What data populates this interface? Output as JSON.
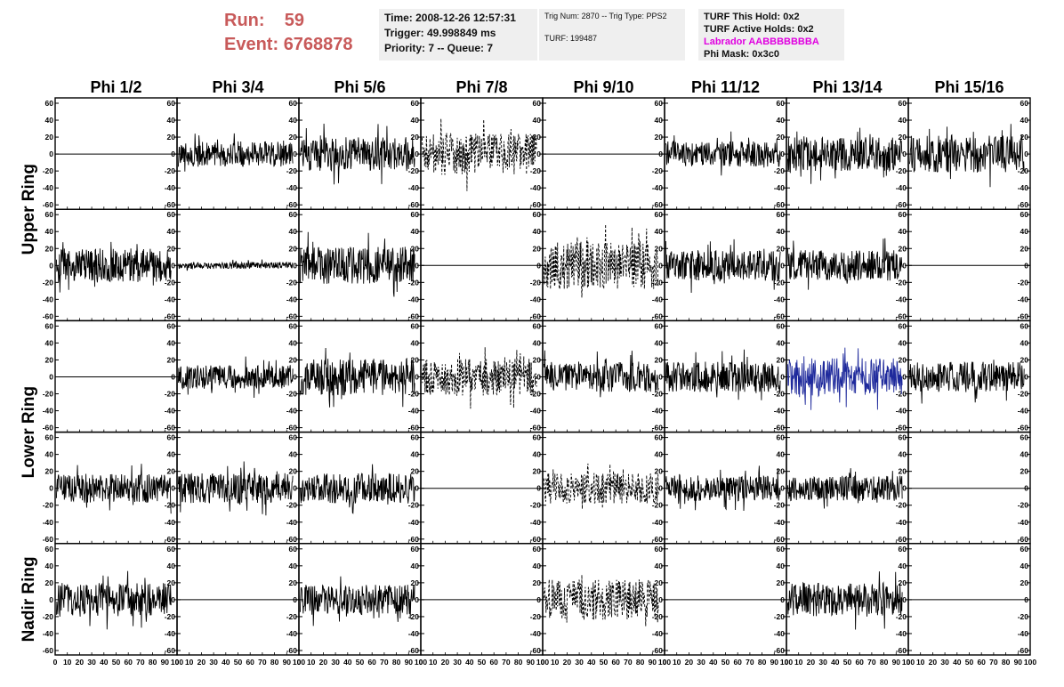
{
  "header": {
    "run_label": "Run:",
    "run_value": "59",
    "event_label": "Event:",
    "event_value": "6768878",
    "time_line": "Time: 2008-12-26 12:57:31",
    "trigger_line": "Trigger: 49.998849 ms",
    "priority_line": "Priority: 7 -- Queue: 7",
    "trig_line": "Trig Num: 2870 -- Trig Type: PPS2",
    "turf_line": "TURF: 199487",
    "turf_hold_line": "TURF This Hold: 0x2",
    "turf_active_line": "TURF Active Holds: 0x2",
    "labrador_line": "Labrador AABBBBBBBA",
    "phi_mask_line": "Phi Mask: 0x3c0"
  },
  "colors": {
    "run_text": "#c85a5a",
    "labrador_text": "#e000e0",
    "trace_black": "#000000",
    "trace_blue": "#1f2a9c",
    "info_bg": "#efefef"
  },
  "chart_data": {
    "type": "line",
    "description_grid": "5 rows x 8 columns of small waveform panels",
    "columns": [
      "Phi 1/2",
      "Phi 3/4",
      "Phi 5/6",
      "Phi 7/8",
      "Phi 9/10",
      "Phi 11/12",
      "Phi 13/14",
      "Phi 15/16"
    ],
    "rows": [
      "Upper Ring",
      "Upper Ring",
      "Lower Ring",
      "Lower Ring",
      "Nadir Ring"
    ],
    "row_groups": [
      {
        "label": "Upper Ring",
        "rows": [
          0,
          1
        ]
      },
      {
        "label": "Lower Ring",
        "rows": [
          2,
          3
        ]
      },
      {
        "label": "Nadir Ring",
        "rows": [
          4
        ]
      }
    ],
    "xlim": [
      0,
      100
    ],
    "ylim": [
      -60,
      60
    ],
    "y_ticks": [
      -60,
      -40,
      -20,
      0,
      20,
      40,
      60
    ],
    "x_ticks": [
      0,
      10,
      20,
      30,
      40,
      50,
      60,
      70,
      80,
      90,
      100
    ],
    "x_tick_labels": [
      "0",
      "10",
      "20",
      "30",
      "40",
      "50",
      "60",
      "70",
      "80",
      "90",
      "100"
    ],
    "y_tick_labels": [
      "-60",
      "-40",
      "-20",
      "0",
      "20",
      "40",
      "60"
    ],
    "panels": [
      [
        {
          "style": "flat"
        },
        {
          "style": "noise",
          "amp": 15,
          "seed": 3
        },
        {
          "style": "noise",
          "amp": 20,
          "seed": 5
        },
        {
          "style": "dashed",
          "amp": 25,
          "seed": 7
        },
        {
          "style": "flat"
        },
        {
          "style": "noise",
          "amp": 15,
          "seed": 11
        },
        {
          "style": "noise",
          "amp": 20,
          "seed": 13
        },
        {
          "style": "noise",
          "amp": 22,
          "seed": 17
        }
      ],
      [
        {
          "style": "noise",
          "amp": 20,
          "seed": 19
        },
        {
          "style": "noise",
          "amp": 4,
          "seed": 23
        },
        {
          "style": "noise",
          "amp": 22,
          "seed": 29
        },
        {
          "style": "flat"
        },
        {
          "style": "dashed",
          "amp": 28,
          "seed": 31
        },
        {
          "style": "noise",
          "amp": 18,
          "seed": 37
        },
        {
          "style": "noise",
          "amp": 18,
          "seed": 41
        },
        {
          "style": "flat"
        }
      ],
      [
        {
          "style": "flat"
        },
        {
          "style": "noise",
          "amp": 14,
          "seed": 43
        },
        {
          "style": "noise",
          "amp": 22,
          "seed": 47
        },
        {
          "style": "dashed",
          "amp": 22,
          "seed": 53
        },
        {
          "style": "noise",
          "amp": 18,
          "seed": 59
        },
        {
          "style": "noise",
          "amp": 18,
          "seed": 61
        },
        {
          "style": "blue",
          "amp": 22,
          "seed": 67
        },
        {
          "style": "noise",
          "amp": 18,
          "seed": 71
        }
      ],
      [
        {
          "style": "noise",
          "amp": 17,
          "seed": 73
        },
        {
          "style": "noise",
          "amp": 18,
          "seed": 79
        },
        {
          "style": "noise",
          "amp": 18,
          "seed": 83
        },
        {
          "style": "flat"
        },
        {
          "style": "dashed",
          "amp": 18,
          "seed": 89
        },
        {
          "style": "noise",
          "amp": 15,
          "seed": 97
        },
        {
          "style": "noise",
          "amp": 15,
          "seed": 101
        },
        {
          "style": "flat"
        }
      ],
      [
        {
          "style": "noise",
          "amp": 20,
          "seed": 103
        },
        {
          "style": "flat"
        },
        {
          "style": "noise",
          "amp": 18,
          "seed": 107
        },
        {
          "style": "flat"
        },
        {
          "style": "dashed",
          "amp": 24,
          "seed": 109
        },
        {
          "style": "flat"
        },
        {
          "style": "noise",
          "amp": 20,
          "seed": 113
        },
        {
          "style": "flat"
        }
      ]
    ]
  }
}
